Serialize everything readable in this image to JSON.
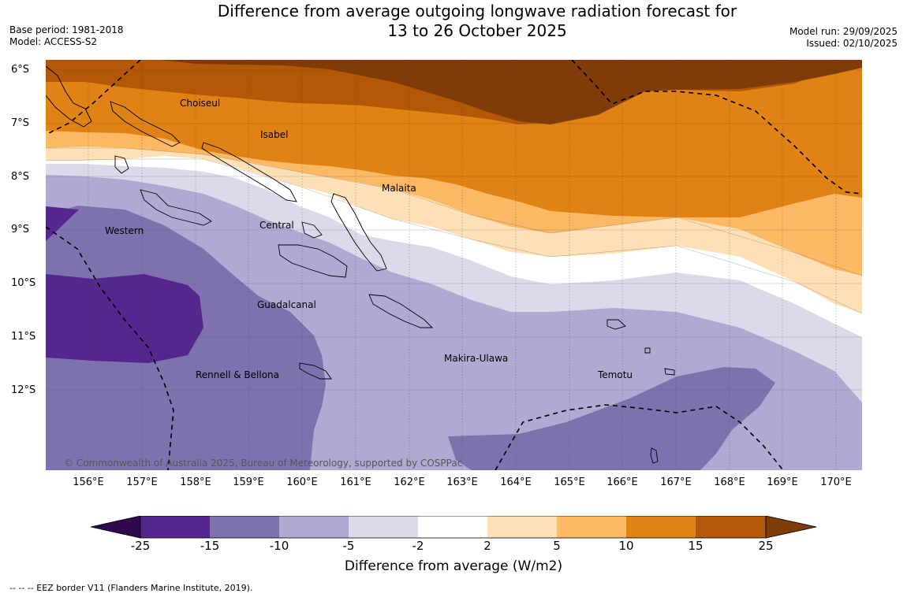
{
  "title_line1": "Difference from average outgoing longwave radiation forecast for",
  "title_line2": "13 to 26 October 2025",
  "base_period": "Base period: 1981-2018",
  "model": "Model: ACCESS-S2",
  "model_run": "Model run: 29/09/2025",
  "issued": "Issued: 02/10/2025",
  "latitude_labels": [
    "6°S",
    "7°S",
    "8°S",
    "9°S",
    "10°S",
    "11°S",
    "12°S"
  ],
  "longitude_labels": [
    "156°E",
    "157°E",
    "158°E",
    "159°E",
    "160°E",
    "161°E",
    "162°E",
    "163°E",
    "164°E",
    "165°E",
    "166°E",
    "167°E",
    "168°E",
    "169°E",
    "170°E"
  ],
  "province_labels": {
    "choiseul": "Choiseul",
    "isabel": "Isabel",
    "malaita": "Malaita",
    "central": "Central",
    "western": "Western",
    "guadalcanal": "Guadalcanal",
    "makira_ulawa": "Makira-Ulawa",
    "temotu": "Temotu",
    "rennell_bellona": "Rennell & Bellona"
  },
  "copyright": "© Commonwealth of Australia 2025, Bureau of Meteorology, supported by COSPPac",
  "colorbar": {
    "ticks": [
      "-25",
      "-15",
      "-10",
      "-5",
      "-2",
      "2",
      "5",
      "10",
      "15",
      "25"
    ],
    "colors": [
      "#2d0a4e",
      "#54278f",
      "#7e72ae",
      "#b0aad2",
      "#dadaeb",
      "#ffffff",
      "#fee0b6",
      "#fdb863",
      "#e08214",
      "#b35806",
      "#7f3b08"
    ],
    "label": "Difference from average (W/m2)"
  },
  "footnote": "--  --  -- EEZ border V11 (Flanders Marine Institute, 2019)."
}
